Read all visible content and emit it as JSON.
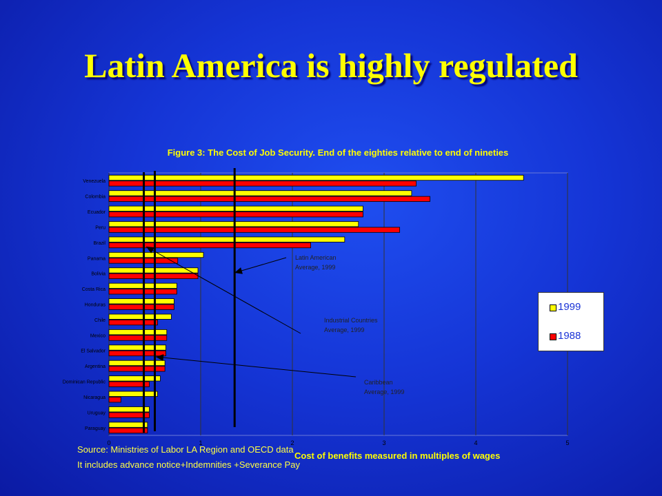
{
  "slide": {
    "title": "Latin America is highly regulated",
    "source_line1": "Source: Ministries of Labor LA Region and OECD data",
    "source_line2": "It includes advance notice+Indemnities +Severance Pay"
  },
  "chart_data": {
    "type": "bar",
    "orientation": "horizontal",
    "title": "Figure 3: The Cost of Job Security. End of the eighties relative to end of nineties",
    "xlabel": "Cost of benefits measured in multiples of wages",
    "ylabel": "",
    "xlim": [
      0,
      5
    ],
    "x_ticks": [
      "0",
      "1",
      "2",
      "3",
      "4",
      "5"
    ],
    "grid": true,
    "legend_position": "right",
    "categories": [
      "Venezuela",
      "Colombia",
      "Ecuador",
      "Peru",
      "Brazil",
      "Panama",
      "Bolivia",
      "Costa Rica",
      "Honduras",
      "Chile",
      "Mexico",
      "El Salvador",
      "Argentina",
      "Dominican Republic",
      "Nicaragua",
      "Uruguay",
      "Paraguay"
    ],
    "series": [
      {
        "name": "1999",
        "color": "#ffff00",
        "values": [
          4.52,
          3.3,
          2.77,
          2.72,
          2.57,
          1.03,
          0.97,
          0.74,
          0.71,
          0.68,
          0.63,
          0.62,
          0.61,
          0.56,
          0.53,
          0.44,
          0.42
        ]
      },
      {
        "name": "1988",
        "color": "#ff0000",
        "values": [
          3.35,
          3.5,
          2.77,
          3.17,
          2.2,
          0.75,
          0.97,
          0.74,
          0.71,
          0.53,
          0.63,
          0.62,
          0.61,
          0.44,
          0.13,
          0.44,
          0.42
        ]
      }
    ],
    "reference_lines": [
      {
        "label_line1": "Latin American",
        "label_line2": "Average, 1999",
        "value": 1.37
      },
      {
        "label_line1": "Industrial Countries",
        "label_line2": "Average, 1999",
        "value": 0.38
      },
      {
        "label_line1": "Caribbean",
        "label_line2": "Average, 1999",
        "value": 0.5
      }
    ],
    "colors": {
      "plot_background": "#1535d6",
      "gridline": "#333333",
      "reference_line": "#000000"
    }
  }
}
